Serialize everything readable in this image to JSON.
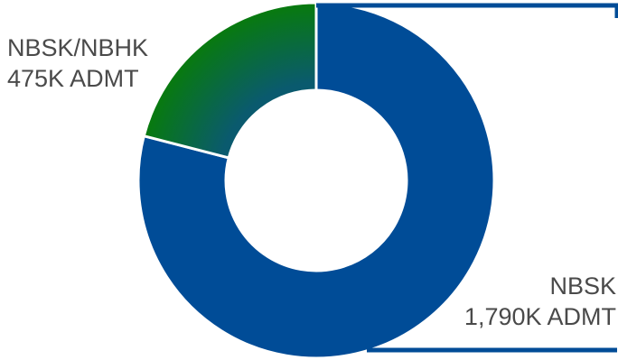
{
  "chart_data": {
    "type": "pie",
    "donut": true,
    "unit": "ADMT",
    "slices": [
      {
        "name": "NBSK",
        "value": 1790,
        "value_label": "1,790K ADMT",
        "color": "#004C97"
      },
      {
        "name": "NBSK/NBHK",
        "value": 475,
        "value_label": "475K ADMT",
        "color": "#087A0E"
      }
    ],
    "accent_gradient_inner": "#0A5A6E"
  }
}
